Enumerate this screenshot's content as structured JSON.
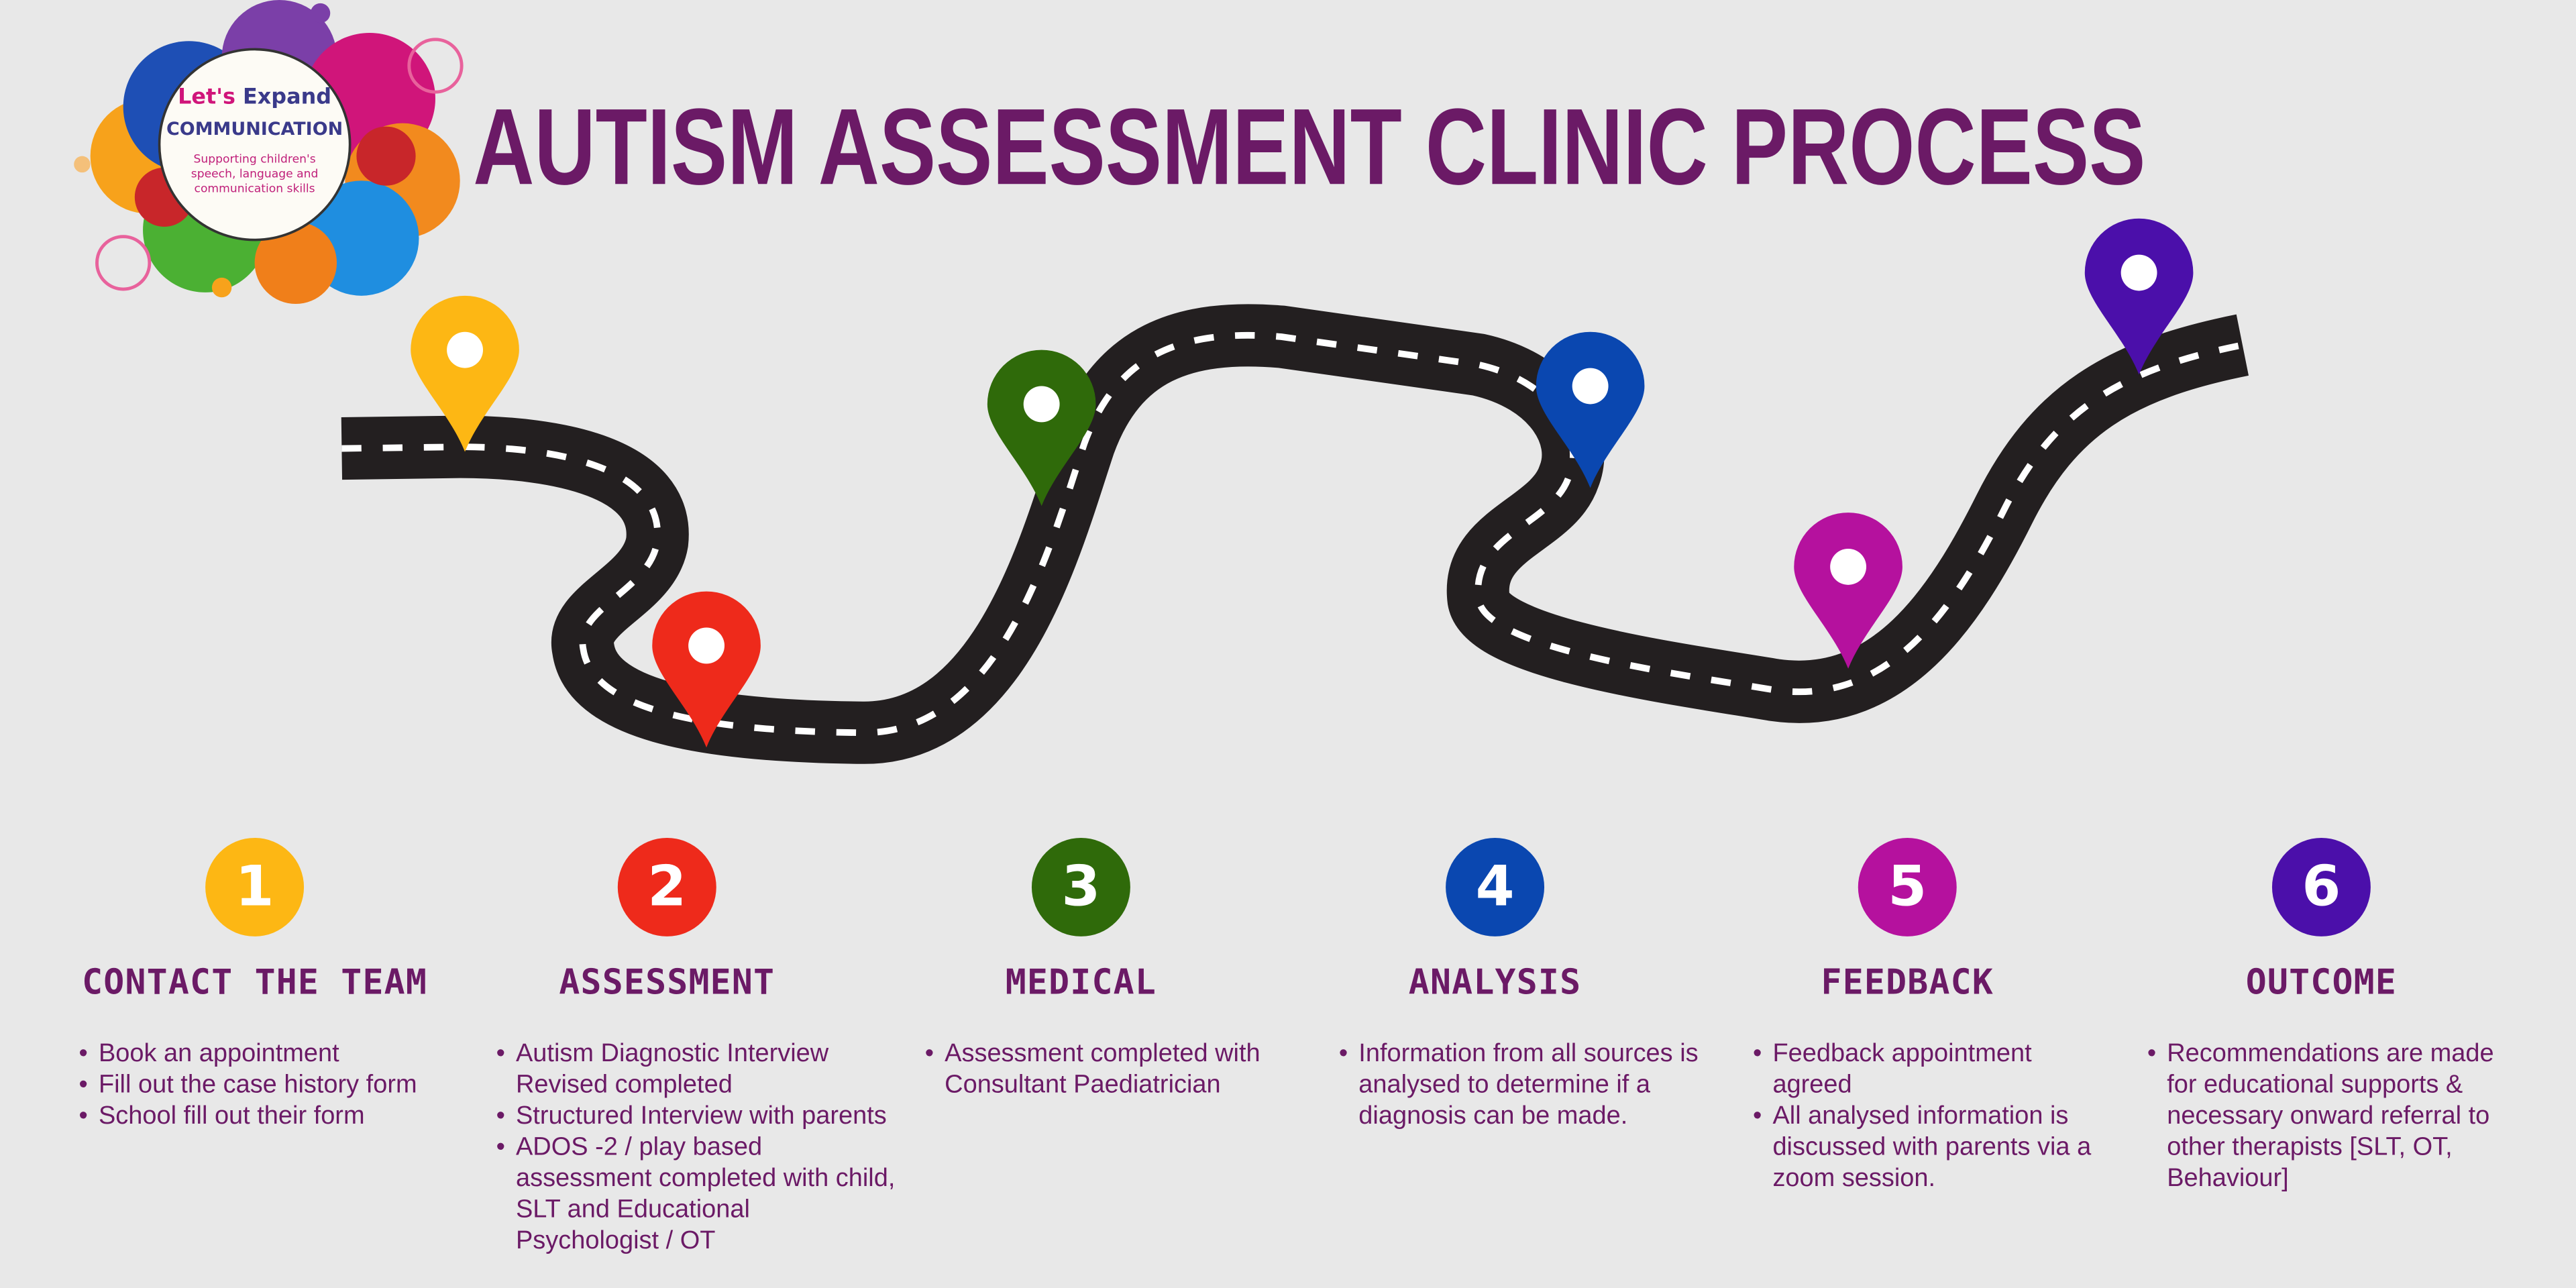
{
  "logo": {
    "line1a": "Let's",
    "line1b": "Expand",
    "line2": "COMMUNICATION",
    "tagline": "Supporting children's speech, language and communication skills"
  },
  "title": "AUTISM ASSESSMENT CLINIC PROCESS",
  "colors": {
    "title": "#6b1a66",
    "road": "#231f20",
    "background": "#e8e8e8"
  },
  "steps": [
    {
      "number": "1",
      "heading": "CONTACT THE TEAM",
      "color": "#fdb714",
      "items": [
        "Book an appointment",
        "Fill out the case history form",
        "School fill out their form"
      ]
    },
    {
      "number": "2",
      "heading": "ASSESSMENT",
      "color": "#ee2a1b",
      "items": [
        "Autism Diagnostic Interview Revised completed",
        "Structured Interview with parents",
        "ADOS -2 / play based assessment completed with child, SLT and Educational Psychologist / OT"
      ]
    },
    {
      "number": "3",
      "heading": "MEDICAL",
      "color": "#2f6a0a",
      "items": [
        "Assessment completed with Consultant Paediatrician"
      ]
    },
    {
      "number": "4",
      "heading": "ANALYSIS",
      "color": "#0a47b0",
      "items": [
        "Information from all sources is analysed to determine if a diagnosis can be made."
      ]
    },
    {
      "number": "5",
      "heading": "FEEDBACK",
      "color": "#b5119e",
      "items": [
        "Feedback appointment agreed",
        "All analysed information is discussed with parents via a zoom session."
      ]
    },
    {
      "number": "6",
      "heading": "OUTCOME",
      "color": "#4b0faa",
      "items": [
        "Recommendations are made for educational supports & necessary onward referral to other therapists [SLT, OT, Behaviour]"
      ]
    }
  ]
}
